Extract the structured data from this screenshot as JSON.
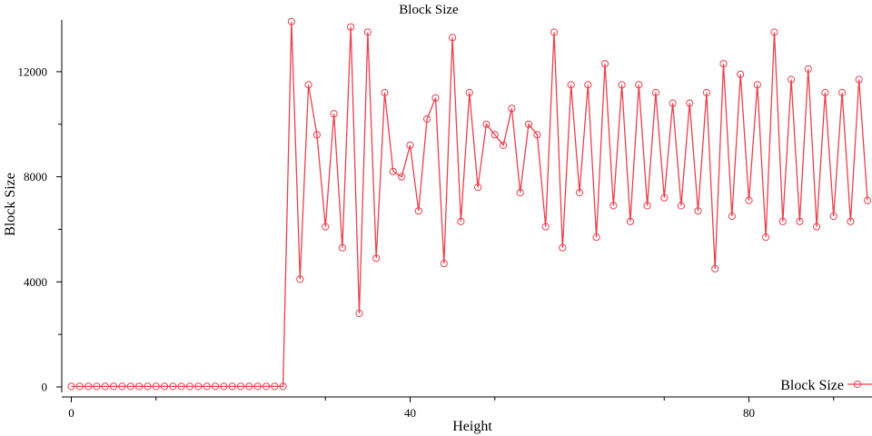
{
  "chart_data": {
    "type": "line",
    "title": "Block Size",
    "xlabel": "Height",
    "ylabel": "Block Size",
    "xlim": [
      -1,
      94
    ],
    "ylim": [
      -200,
      14000
    ],
    "x_ticks": [
      0,
      40,
      80
    ],
    "x_minor_ticks": [
      10,
      30,
      50,
      70,
      90
    ],
    "y_ticks": [
      0,
      4000,
      8000,
      12000
    ],
    "y_minor_ticks": [
      2000,
      6000,
      10000
    ],
    "grid": false,
    "legend": "bottom-right",
    "series": [
      {
        "name": "Block Size",
        "color": "#e8414e",
        "marker": "circle-open",
        "x": [
          0,
          1,
          2,
          3,
          4,
          5,
          6,
          7,
          8,
          9,
          10,
          11,
          12,
          13,
          14,
          15,
          16,
          17,
          18,
          19,
          20,
          21,
          22,
          23,
          24,
          25,
          26,
          27,
          28,
          29,
          30,
          31,
          32,
          33,
          34,
          35,
          36,
          37,
          38,
          39,
          40,
          41,
          42,
          43,
          44,
          45,
          46,
          47,
          48,
          49,
          50,
          51,
          52,
          53,
          54,
          55,
          56,
          57,
          58,
          59,
          60,
          61,
          62,
          63,
          64,
          65,
          66,
          67,
          68,
          69,
          70,
          71,
          72,
          73,
          74,
          75,
          76,
          77,
          78,
          79,
          80,
          81,
          82,
          83,
          84,
          85,
          86,
          87,
          88,
          89,
          90,
          91,
          92,
          93,
          94
        ],
        "y": [
          20,
          20,
          20,
          20,
          20,
          20,
          20,
          20,
          20,
          20,
          20,
          20,
          20,
          20,
          20,
          20,
          20,
          20,
          20,
          20,
          20,
          20,
          20,
          20,
          20,
          20,
          13900,
          4100,
          11500,
          9600,
          6100,
          10400,
          5300,
          13700,
          2800,
          13500,
          4900,
          11200,
          8200,
          8000,
          9200,
          6700,
          10200,
          11000,
          4700,
          13300,
          6300,
          11200,
          7600,
          10000,
          9600,
          9200,
          10600,
          7400,
          10000,
          9600,
          6100,
          13500,
          5300,
          11500,
          7400,
          11500,
          5700,
          12300,
          6900,
          11500,
          6300,
          11500,
          6900,
          11200,
          7200,
          10800,
          6900,
          10800,
          6700,
          11200,
          4500,
          12300,
          6500,
          11900,
          7100,
          11500,
          5700,
          13500,
          6300,
          11700,
          6300,
          12100,
          6100,
          11200,
          6500,
          11200,
          6300,
          11700,
          7100
        ]
      }
    ]
  }
}
